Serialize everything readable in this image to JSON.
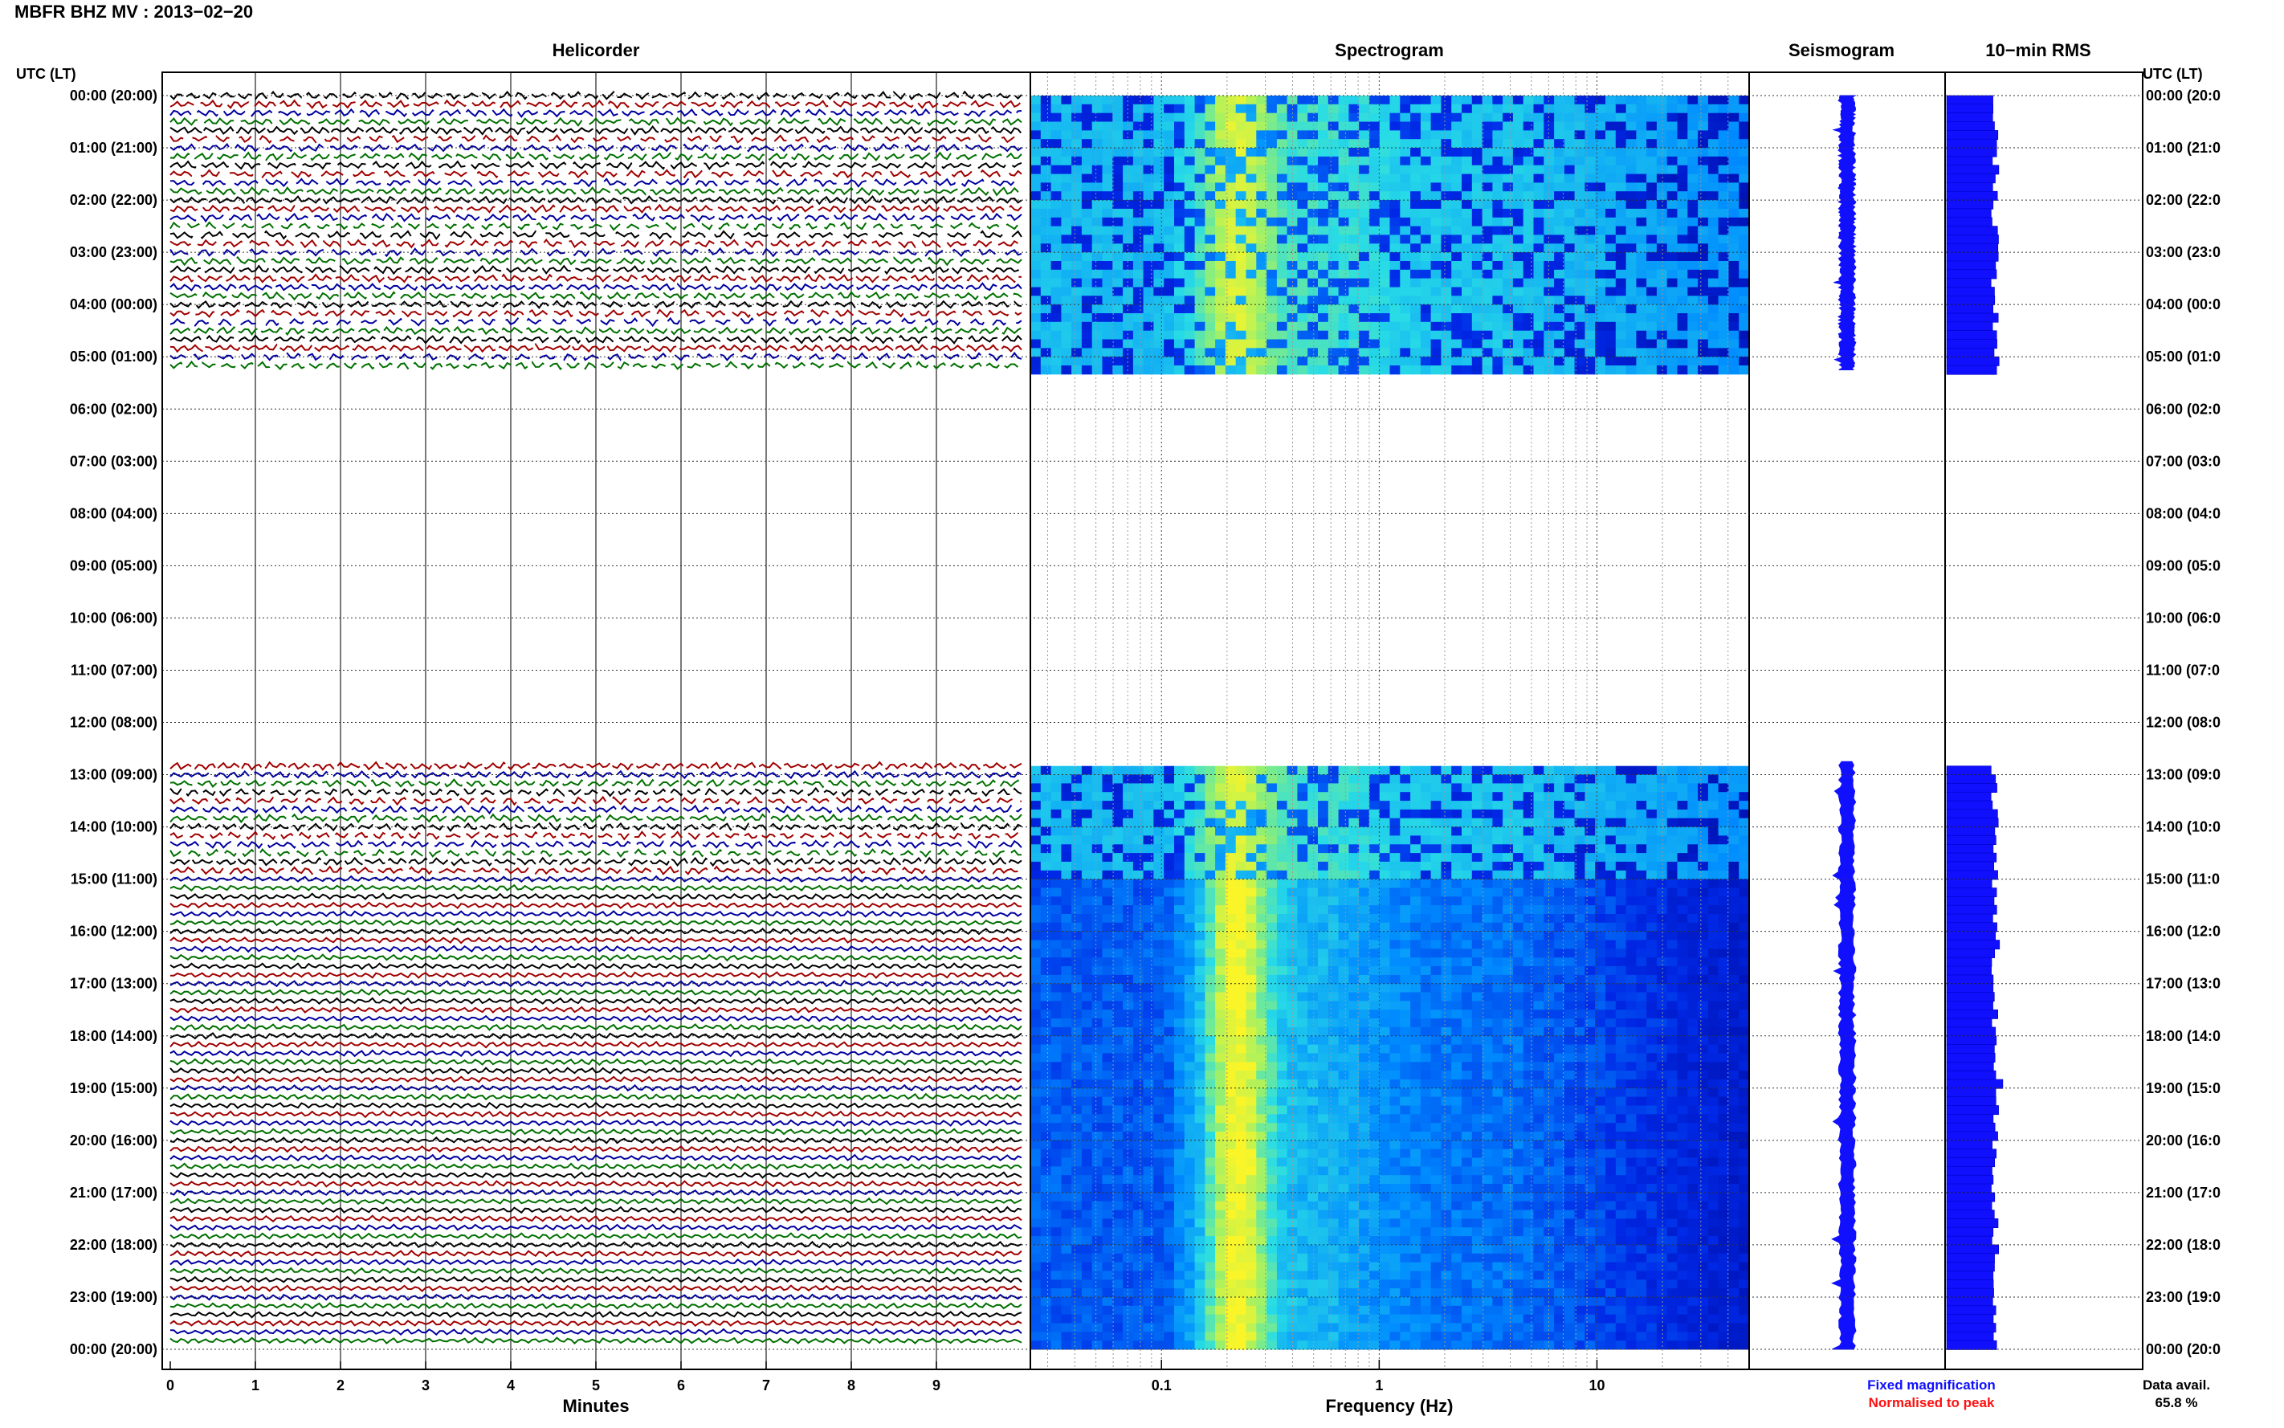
{
  "header": {
    "title": "MBFR BHZ MV : 2013−02−20"
  },
  "chart_data": {
    "type": "composite",
    "panels": {
      "helicorder": "Helicorder",
      "spectrogram": "Spectrogram",
      "seismogram": "Seismogram",
      "rms": "10−min RMS"
    },
    "axis_label_left": "UTC (LT)",
    "axis_label_right": "UTC (LT)",
    "y_ticks_left": [
      "00:00 (20:00)",
      "01:00 (21:00)",
      "02:00 (22:00)",
      "03:00 (23:00)",
      "04:00 (00:00)",
      "05:00 (01:00)",
      "06:00 (02:00)",
      "07:00 (03:00)",
      "08:00 (04:00)",
      "09:00 (05:00)",
      "10:00 (06:00)",
      "11:00 (07:00)",
      "12:00 (08:00)",
      "13:00 (09:00)",
      "14:00 (10:00)",
      "15:00 (11:00)",
      "16:00 (12:00)",
      "17:00 (13:00)",
      "18:00 (14:00)",
      "19:00 (15:00)",
      "20:00 (16:00)",
      "21:00 (17:00)",
      "22:00 (18:00)",
      "23:00 (19:00)",
      "00:00 (20:00)"
    ],
    "y_ticks_right": [
      "00:00 (20:0",
      "01:00 (21:0",
      "02:00 (22:0",
      "03:00 (23:0",
      "04:00 (00:0",
      "05:00 (01:0",
      "06:00 (02:0",
      "07:00 (03:0",
      "08:00 (04:0",
      "09:00 (05:0",
      "10:00 (06:0",
      "11:00 (07:0",
      "12:00 (08:0",
      "13:00 (09:0",
      "14:00 (10:0",
      "15:00 (11:0",
      "16:00 (12:0",
      "17:00 (13:0",
      "18:00 (14:0",
      "19:00 (15:0",
      "20:00 (16:0",
      "21:00 (17:0",
      "22:00 (18:0",
      "23:00 (19:0",
      "00:00 (20:0"
    ],
    "helicorder_x_ticks": [
      "0",
      "1",
      "2",
      "3",
      "4",
      "5",
      "6",
      "7",
      "8",
      "9"
    ],
    "helicorder_xlabel": "Minutes",
    "helicorder_xlim": [
      0,
      10
    ],
    "spectrogram_x_ticks": [
      "0.1",
      "1",
      "10"
    ],
    "spectrogram_xlabel": "Frequency (Hz)",
    "spectrogram_xlim": [
      0.025,
      50
    ],
    "spectrogram_xscale": "log",
    "data_gaps_hours": [
      [
        5.25,
        12.75
      ]
    ],
    "trace_colors": [
      "#000000",
      "#a00000",
      "#0000a0",
      "#007000"
    ],
    "legend": [
      {
        "label": "Fixed magnification",
        "color": "#1010ff"
      },
      {
        "label": "Normalised to peak",
        "color": "#ff1010"
      }
    ],
    "data_availability": {
      "label": "Data avail.",
      "value": "65.8 %"
    }
  }
}
